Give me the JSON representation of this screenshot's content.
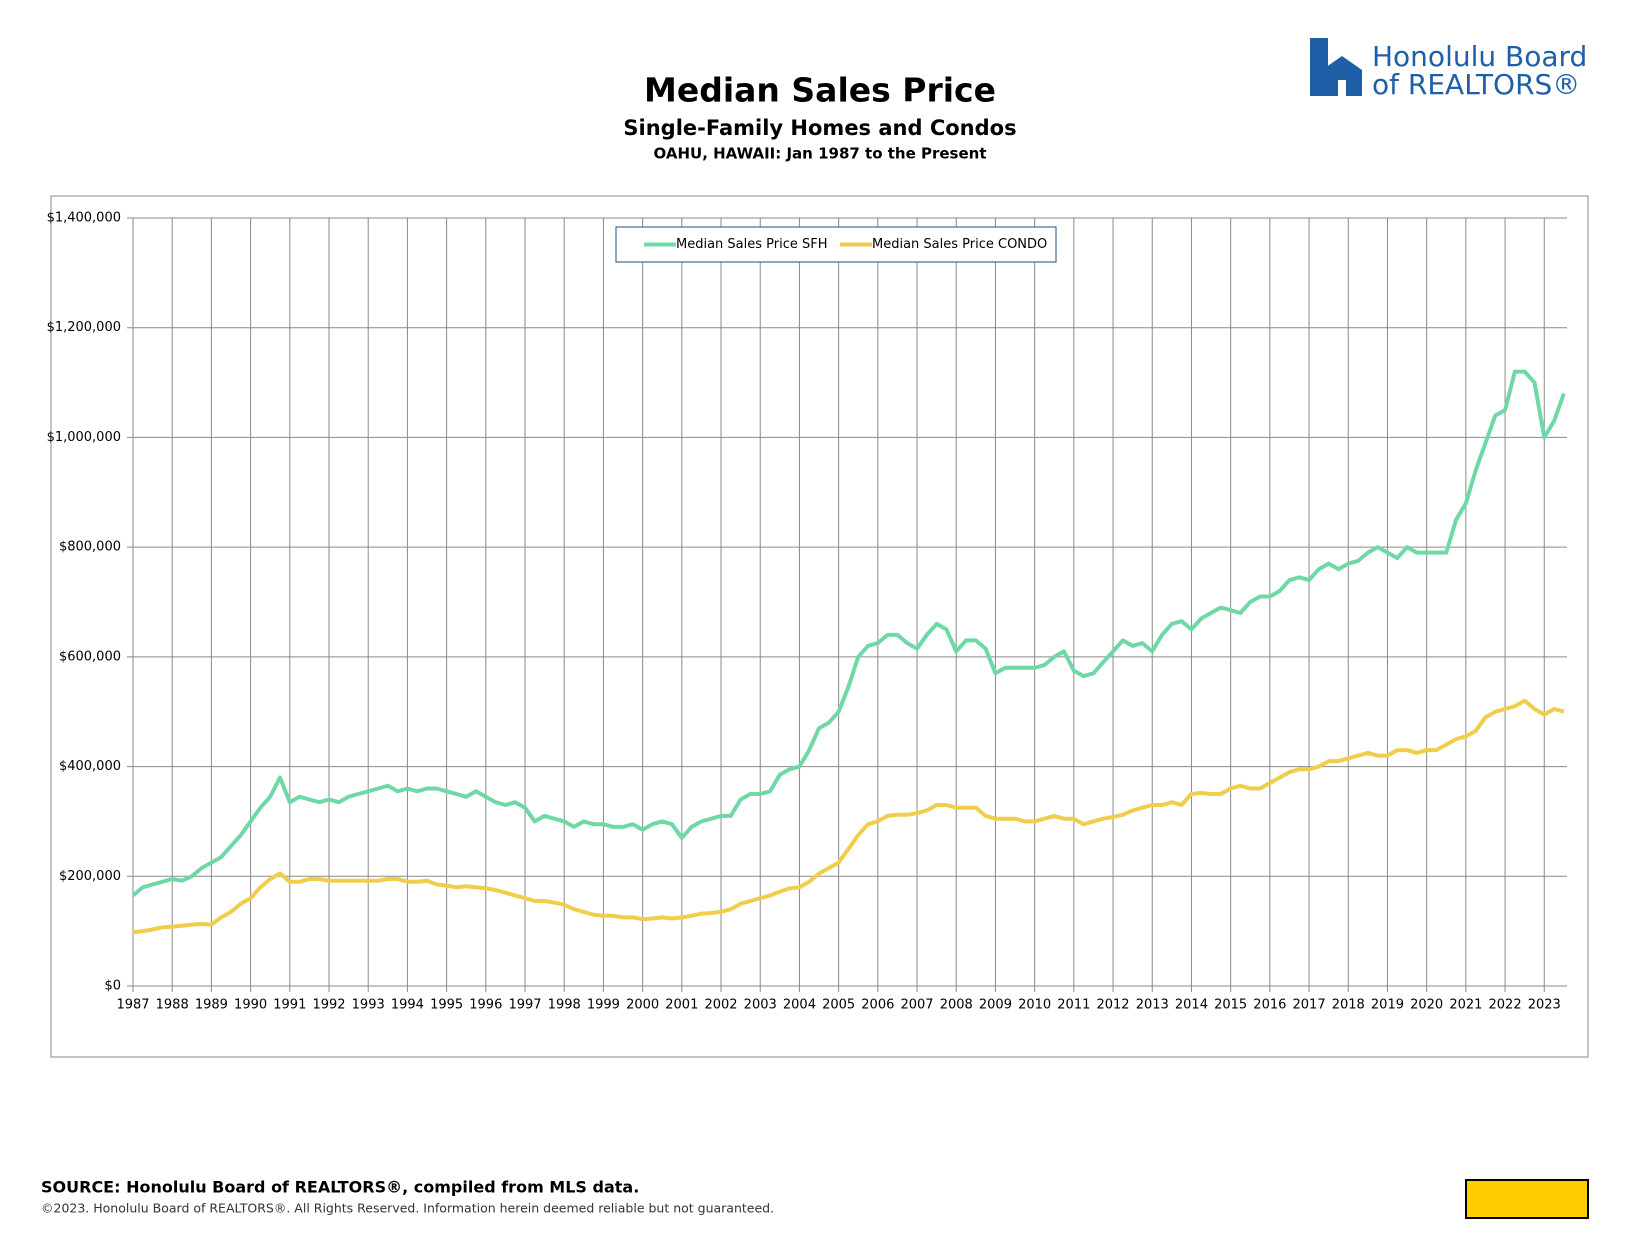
{
  "logo": [
    "Honolulu Board",
    "of REALTORS®"
  ],
  "footer": {
    "source": "SOURCE: Honolulu Board of REALTORS®, compiled from MLS data.",
    "copyright": "©2023. Honolulu Board of REALTORS®. All Rights Reserved. Information herein deemed reliable but not guaranteed."
  },
  "chart_data": {
    "type": "line",
    "title": "Median Sales Price",
    "subtitle": "Single-Family Homes and Condos",
    "subtitle2": "OAHU, HAWAII: Jan 1987 to the Present",
    "x": [
      1987,
      1987.25,
      1987.5,
      1987.75,
      1988,
      1988.25,
      1988.5,
      1988.75,
      1989,
      1989.25,
      1989.5,
      1989.75,
      1990,
      1990.25,
      1990.5,
      1990.75,
      1991,
      1991.25,
      1991.5,
      1991.75,
      1992,
      1992.25,
      1992.5,
      1992.75,
      1993,
      1993.25,
      1993.5,
      1993.75,
      1994,
      1994.25,
      1994.5,
      1994.75,
      1995,
      1995.25,
      1995.5,
      1995.75,
      1996,
      1996.25,
      1996.5,
      1996.75,
      1997,
      1997.25,
      1997.5,
      1997.75,
      1998,
      1998.25,
      1998.5,
      1998.75,
      1999,
      1999.25,
      1999.5,
      1999.75,
      2000,
      2000.25,
      2000.5,
      2000.75,
      2001,
      2001.25,
      2001.5,
      2001.75,
      2002,
      2002.25,
      2002.5,
      2002.75,
      2003,
      2003.25,
      2003.5,
      2003.75,
      2004,
      2004.25,
      2004.5,
      2004.75,
      2005,
      2005.25,
      2005.5,
      2005.75,
      2006,
      2006.25,
      2006.5,
      2006.75,
      2007,
      2007.25,
      2007.5,
      2007.75,
      2008,
      2008.25,
      2008.5,
      2008.75,
      2009,
      2009.25,
      2009.5,
      2009.75,
      2010,
      2010.25,
      2010.5,
      2010.75,
      2011,
      2011.25,
      2011.5,
      2011.75,
      2012,
      2012.25,
      2012.5,
      2012.75,
      2013,
      2013.25,
      2013.5,
      2013.75,
      2014,
      2014.25,
      2014.5,
      2014.75,
      2015,
      2015.25,
      2015.5,
      2015.75,
      2016,
      2016.25,
      2016.5,
      2016.75,
      2017,
      2017.25,
      2017.5,
      2017.75,
      2018,
      2018.25,
      2018.5,
      2018.75,
      2019,
      2019.25,
      2019.5,
      2019.75,
      2020,
      2020.25,
      2020.5,
      2020.75,
      2021,
      2021.25,
      2021.5,
      2021.75,
      2022,
      2022.25,
      2022.5,
      2022.75,
      2023,
      2023.25,
      2023.5
    ],
    "series": [
      {
        "name": "Median Sales Price SFH",
        "color": "#6ed8a6",
        "values": [
          165000,
          180000,
          185000,
          190000,
          195000,
          192000,
          200000,
          215000,
          225000,
          235000,
          255000,
          275000,
          300000,
          325000,
          345000,
          380000,
          335000,
          345000,
          340000,
          335000,
          340000,
          335000,
          345000,
          350000,
          355000,
          360000,
          365000,
          355000,
          360000,
          355000,
          360000,
          360000,
          355000,
          350000,
          345000,
          355000,
          345000,
          335000,
          330000,
          335000,
          325000,
          300000,
          310000,
          305000,
          300000,
          290000,
          300000,
          295000,
          295000,
          290000,
          290000,
          295000,
          285000,
          295000,
          300000,
          295000,
          270000,
          290000,
          300000,
          305000,
          310000,
          310000,
          340000,
          350000,
          350000,
          355000,
          385000,
          395000,
          400000,
          430000,
          470000,
          480000,
          500000,
          545000,
          600000,
          620000,
          625000,
          640000,
          640000,
          625000,
          615000,
          640000,
          660000,
          650000,
          610000,
          630000,
          630000,
          615000,
          570000,
          580000,
          580000,
          580000,
          580000,
          585000,
          600000,
          610000,
          575000,
          565000,
          570000,
          590000,
          610000,
          630000,
          620000,
          625000,
          610000,
          640000,
          660000,
          665000,
          650000,
          670000,
          680000,
          690000,
          685000,
          680000,
          700000,
          710000,
          710000,
          720000,
          740000,
          745000,
          740000,
          760000,
          770000,
          760000,
          770000,
          775000,
          790000,
          800000,
          790000,
          780000,
          800000,
          790000,
          790000,
          790000,
          790000,
          850000,
          880000,
          940000,
          990000,
          1040000,
          1050000,
          1120000,
          1120000,
          1100000,
          1000000,
          1030000,
          1080000
        ]
      },
      {
        "name": "Median Sales Price CONDO",
        "color": "#f0cd4a",
        "values": [
          98000,
          100000,
          103000,
          107000,
          108000,
          110000,
          112000,
          113000,
          112000,
          125000,
          135000,
          150000,
          160000,
          180000,
          195000,
          205000,
          190000,
          190000,
          195000,
          195000,
          192000,
          192000,
          192000,
          192000,
          192000,
          192000,
          195000,
          195000,
          190000,
          190000,
          192000,
          185000,
          183000,
          180000,
          182000,
          180000,
          178000,
          175000,
          170000,
          165000,
          160000,
          155000,
          155000,
          152000,
          148000,
          140000,
          135000,
          130000,
          128000,
          128000,
          125000,
          125000,
          122000,
          123000,
          125000,
          123000,
          125000,
          128000,
          132000,
          133000,
          135000,
          140000,
          150000,
          155000,
          160000,
          165000,
          172000,
          178000,
          180000,
          190000,
          205000,
          215000,
          225000,
          250000,
          275000,
          295000,
          300000,
          310000,
          312000,
          312000,
          315000,
          320000,
          330000,
          330000,
          325000,
          325000,
          325000,
          310000,
          305000,
          305000,
          305000,
          300000,
          300000,
          305000,
          310000,
          305000,
          305000,
          295000,
          300000,
          305000,
          308000,
          312000,
          320000,
          325000,
          330000,
          330000,
          335000,
          330000,
          350000,
          352000,
          350000,
          350000,
          360000,
          365000,
          360000,
          360000,
          370000,
          380000,
          390000,
          395000,
          395000,
          400000,
          410000,
          410000,
          415000,
          420000,
          425000,
          420000,
          420000,
          430000,
          430000,
          425000,
          430000,
          430000,
          440000,
          450000,
          455000,
          465000,
          490000,
          500000,
          505000,
          510000,
          520000,
          505000,
          495000,
          505000,
          500000
        ]
      }
    ],
    "xlim": [
      1987,
      2023.58
    ],
    "xticks": [
      1987,
      1988,
      1989,
      1990,
      1991,
      1992,
      1993,
      1994,
      1995,
      1996,
      1997,
      1998,
      1999,
      2000,
      2001,
      2002,
      2003,
      2004,
      2005,
      2006,
      2007,
      2008,
      2009,
      2010,
      2011,
      2012,
      2013,
      2014,
      2015,
      2016,
      2017,
      2018,
      2019,
      2020,
      2021,
      2022,
      2023
    ],
    "ylim": [
      0,
      1400000
    ],
    "yticks": [
      {
        "value": 0,
        "label": "$0"
      },
      {
        "value": 200000,
        "label": "$200,000"
      },
      {
        "value": 400000,
        "label": "$400,000"
      },
      {
        "value": 600000,
        "label": "$600,000"
      },
      {
        "value": 800000,
        "label": "$800,000"
      },
      {
        "value": 1000000,
        "label": "$1,000,000"
      },
      {
        "value": 1200000,
        "label": "$1,200,000"
      },
      {
        "value": 1400000,
        "label": "$1,400,000"
      }
    ],
    "grid": true,
    "legend": "top"
  }
}
